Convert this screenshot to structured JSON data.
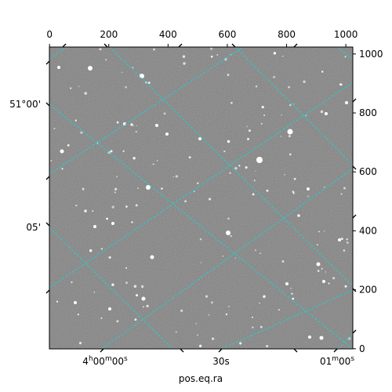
{
  "chart_data": {
    "type": "image",
    "xlabel": "pos.eq.ra",
    "ylabel": "",
    "pixel_axes": {
      "top_x_ticks": [
        "0",
        "200",
        "400",
        "600",
        "800",
        "1000"
      ],
      "top_x_values": [
        0,
        200,
        400,
        600,
        800,
        1000
      ],
      "right_y_ticks": [
        "0",
        "200",
        "400",
        "600",
        "800",
        "1000"
      ],
      "right_y_values": [
        0,
        200,
        400,
        600,
        800,
        1000
      ],
      "xlim": [
        -0.5,
        1023.5
      ],
      "ylim": [
        -0.5,
        1023.5
      ]
    },
    "world_axes": {
      "dec_ticks": [
        "51°00'",
        "05'"
      ],
      "ra_ticks": [
        "4h00m00s",
        "30s",
        "01m00s"
      ]
    },
    "image": {
      "colormap": "gray",
      "description_colors": {
        "background": "#7b7b7b",
        "grid": "#1fd0d0",
        "frame": "#000000"
      }
    },
    "grid": true
  }
}
